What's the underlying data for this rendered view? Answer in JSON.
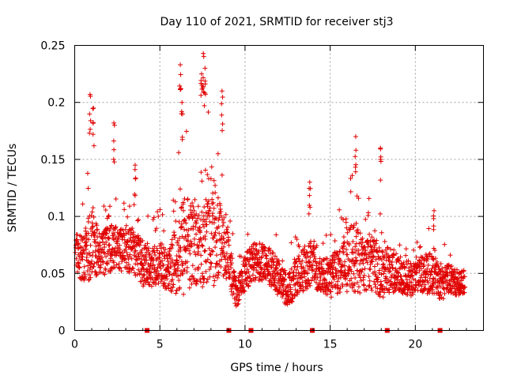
{
  "chart_data": {
    "type": "scatter",
    "title": "Day 110 of 2021, SRMTID for receiver stj3",
    "xlabel": "GPS time / hours",
    "ylabel": "SRMTID / TECUs",
    "xlim": [
      0,
      24
    ],
    "ylim": [
      0,
      0.25
    ],
    "x_ticks": [
      0,
      5,
      10,
      15,
      20
    ],
    "x_tick_labels": [
      "0",
      "5",
      "10",
      "15",
      "20"
    ],
    "y_ticks": [
      0,
      0.05,
      0.1,
      0.15,
      0.2,
      0.25
    ],
    "y_tick_labels": [
      "0",
      "0.05",
      "0.1",
      "0.15",
      "0.2",
      "0.25"
    ],
    "grid": true,
    "marker": "+",
    "color": "#e00000",
    "series": [
      {
        "name": "SRMTID",
        "trend_profile": {
          "x": [
            0.0,
            0.5,
            1.0,
            1.5,
            2.0,
            2.5,
            3.0,
            3.5,
            4.0,
            4.5,
            5.0,
            5.5,
            6.0,
            6.5,
            7.0,
            7.5,
            8.0,
            8.5,
            9.0,
            9.5,
            10.0,
            10.5,
            11.0,
            11.5,
            12.0,
            12.5,
            13.0,
            13.5,
            14.0,
            14.5,
            15.0,
            15.5,
            16.0,
            16.5,
            17.0,
            17.5,
            18.0,
            18.5,
            19.0,
            19.5,
            20.0,
            20.5,
            21.0,
            21.5,
            22.0,
            22.5,
            23.0
          ],
          "center": [
            0.07,
            0.06,
            0.08,
            0.065,
            0.075,
            0.07,
            0.072,
            0.068,
            0.06,
            0.055,
            0.06,
            0.05,
            0.065,
            0.075,
            0.08,
            0.07,
            0.085,
            0.08,
            0.065,
            0.03,
            0.05,
            0.06,
            0.06,
            0.055,
            0.045,
            0.035,
            0.045,
            0.055,
            0.06,
            0.05,
            0.045,
            0.055,
            0.06,
            0.065,
            0.055,
            0.06,
            0.05,
            0.055,
            0.05,
            0.045,
            0.045,
            0.05,
            0.05,
            0.04,
            0.045,
            0.04,
            0.045
          ],
          "spread": [
            0.03,
            0.04,
            0.06,
            0.03,
            0.05,
            0.035,
            0.035,
            0.035,
            0.04,
            0.03,
            0.035,
            0.03,
            0.06,
            0.08,
            0.07,
            0.06,
            0.09,
            0.06,
            0.04,
            0.02,
            0.03,
            0.03,
            0.03,
            0.03,
            0.03,
            0.025,
            0.03,
            0.035,
            0.04,
            0.03,
            0.03,
            0.04,
            0.05,
            0.06,
            0.04,
            0.045,
            0.04,
            0.04,
            0.03,
            0.03,
            0.025,
            0.03,
            0.035,
            0.025,
            0.025,
            0.02,
            0.02
          ]
        },
        "peaks": [
          {
            "x": 0.9,
            "y": 0.207
          },
          {
            "x": 1.1,
            "y": 0.195
          },
          {
            "x": 2.3,
            "y": 0.182
          },
          {
            "x": 3.55,
            "y": 0.145
          },
          {
            "x": 6.2,
            "y": 0.233
          },
          {
            "x": 6.3,
            "y": 0.2
          },
          {
            "x": 7.45,
            "y": 0.225
          },
          {
            "x": 7.55,
            "y": 0.243
          },
          {
            "x": 7.65,
            "y": 0.23
          },
          {
            "x": 8.65,
            "y": 0.21
          },
          {
            "x": 13.8,
            "y": 0.13
          },
          {
            "x": 16.5,
            "y": 0.17
          },
          {
            "x": 17.95,
            "y": 0.16
          },
          {
            "x": 21.1,
            "y": 0.105
          }
        ]
      }
    ],
    "gap_markers_x": [
      4.25,
      9.05,
      10.35,
      13.95,
      18.35,
      21.45
    ]
  }
}
